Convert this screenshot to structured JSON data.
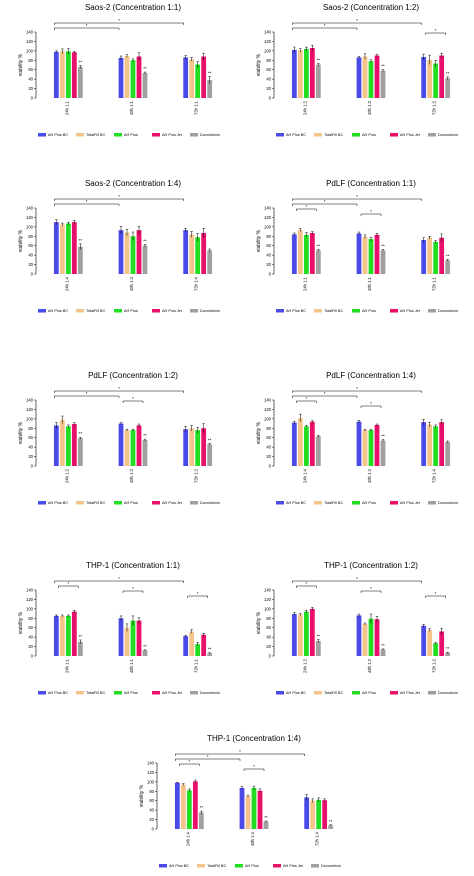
{
  "colors": {
    "AH Plus BC": "#4a4ae8",
    "TotalFill BC": "#f5c48a",
    "AH Plus": "#22dd22",
    "AH Plus Jet": "#e8106a",
    "Doxorubicin": "#a0a0a0"
  },
  "chart_data": [
    {
      "type": "bar",
      "title": "Saos-2 (Concentration 1:1)",
      "ylabel": "viability %",
      "ylim": [
        0,
        140
      ],
      "yticks": [
        0,
        20,
        40,
        60,
        80,
        100,
        120,
        140
      ],
      "categories": [
        "24h 1:1",
        "48h 1:1",
        "72h 1:1"
      ],
      "series": [
        {
          "name": "AH Plus BC",
          "values": [
            98,
            85,
            86
          ],
          "errors": [
            2,
            4,
            4
          ]
        },
        {
          "name": "TotalFill BC",
          "values": [
            99,
            89,
            82
          ],
          "errors": [
            5,
            3,
            4
          ]
        },
        {
          "name": "AH Plus",
          "values": [
            99,
            80,
            71
          ],
          "errors": [
            6,
            3,
            6
          ]
        },
        {
          "name": "AH Plus Jet",
          "values": [
            97,
            88,
            88
          ],
          "errors": [
            2,
            8,
            7
          ]
        },
        {
          "name": "Doxorubicin",
          "values": [
            66,
            53,
            38
          ],
          "errors": [
            3,
            2,
            8
          ]
        }
      ],
      "dox_marks": [
        "**",
        "**",
        "**"
      ],
      "brackets": [
        {
          "from": "24h 1:1",
          "to": "72h 1:1",
          "label": "*"
        },
        {
          "from": "24h 1:1",
          "to": "48h 1:1",
          "label": "*"
        }
      ]
    },
    {
      "type": "bar",
      "title": "Saos-2 (Concentration 1:2)",
      "ylabel": "viability %",
      "ylim": [
        0,
        140
      ],
      "yticks": [
        0,
        20,
        40,
        60,
        80,
        100,
        120,
        140
      ],
      "categories": [
        "24h 1:2",
        "48h 1:2",
        "72h 1:2"
      ],
      "series": [
        {
          "name": "AH Plus BC",
          "values": [
            102,
            86,
            87
          ],
          "errors": [
            6,
            2,
            6
          ]
        },
        {
          "name": "TotalFill BC",
          "values": [
            101,
            88,
            81
          ],
          "errors": [
            4,
            6,
            10
          ]
        },
        {
          "name": "AH Plus",
          "values": [
            104,
            78,
            73
          ],
          "errors": [
            4,
            3,
            7
          ]
        },
        {
          "name": "AH Plus Jet",
          "values": [
            106,
            90,
            90
          ],
          "errors": [
            6,
            3,
            5
          ]
        },
        {
          "name": "Doxorubicin",
          "values": [
            71,
            58,
            42
          ],
          "errors": [
            2,
            2,
            3
          ]
        }
      ],
      "dox_marks": [
        "**",
        "**",
        "**"
      ],
      "brackets": [
        {
          "from": "24h 1:2",
          "to": "72h 1:2",
          "label": "*"
        },
        {
          "from": "24h 1:2",
          "to": "48h 1:2",
          "label": "*"
        },
        {
          "from": "72h 1:2",
          "to": "72h 1:2",
          "label": "*"
        }
      ]
    },
    {
      "type": "bar",
      "title": "Saos-2 (Concentration 1:4)",
      "ylabel": "viability %",
      "ylim": [
        0,
        140
      ],
      "yticks": [
        0,
        20,
        40,
        60,
        80,
        100,
        120,
        140
      ],
      "categories": [
        "24h 1:4",
        "48h 1:4",
        "72h 1:4"
      ],
      "series": [
        {
          "name": "AH Plus BC",
          "values": [
            110,
            93,
            93
          ],
          "errors": [
            5,
            8,
            4
          ]
        },
        {
          "name": "TotalFill BC",
          "values": [
            105,
            88,
            84
          ],
          "errors": [
            3,
            7,
            6
          ]
        },
        {
          "name": "AH Plus",
          "values": [
            107,
            80,
            78
          ],
          "errors": [
            3,
            9,
            8
          ]
        },
        {
          "name": "AH Plus Jet",
          "values": [
            110,
            93,
            87
          ],
          "errors": [
            4,
            8,
            10
          ]
        },
        {
          "name": "Doxorubicin",
          "values": [
            58,
            60,
            50
          ],
          "errors": [
            6,
            3,
            3
          ]
        }
      ],
      "dox_marks": [
        "**",
        "**",
        ""
      ],
      "brackets": [
        {
          "from": "24h 1:4",
          "to": "72h 1:4",
          "label": "*"
        },
        {
          "from": "24h 1:4",
          "to": "48h 1:4",
          "label": "*"
        }
      ]
    },
    {
      "type": "bar",
      "title": "PdLF (Concentration 1:1)",
      "ylabel": "viability %",
      "ylim": [
        0,
        140
      ],
      "yticks": [
        0,
        20,
        40,
        60,
        80,
        100,
        120,
        140
      ],
      "categories": [
        "24h 1:1",
        "48h 1:1",
        "72h 1:1"
      ],
      "series": [
        {
          "name": "AH Plus BC",
          "values": [
            84,
            86,
            72
          ],
          "errors": [
            3,
            3,
            5
          ]
        },
        {
          "name": "TotalFill BC",
          "values": [
            93,
            79,
            77
          ],
          "errors": [
            3,
            4,
            3
          ]
        },
        {
          "name": "AH Plus",
          "values": [
            83,
            74,
            68
          ],
          "errors": [
            5,
            4,
            3
          ]
        },
        {
          "name": "AH Plus Jet",
          "values": [
            87,
            83,
            77
          ],
          "errors": [
            3,
            3,
            8
          ]
        },
        {
          "name": "Doxorubicin",
          "values": [
            50,
            50,
            29
          ],
          "errors": [
            2,
            2,
            2
          ]
        }
      ],
      "dox_marks": [
        "**",
        "**",
        "**"
      ],
      "brackets": [
        {
          "from": "24h 1:1",
          "to": "72h 1:1",
          "label": "*"
        },
        {
          "from": "24h 1:1",
          "to": "48h 1:1",
          "label": "*"
        },
        {
          "from": "24h 1:1",
          "to": "24h 1:1",
          "label": "*"
        },
        {
          "from": "48h 1:1",
          "to": "48h 1:1",
          "label": "*"
        }
      ]
    },
    {
      "type": "bar",
      "title": "PdLF (Concentration 1:2)",
      "ylabel": "viability %",
      "ylim": [
        0,
        140
      ],
      "yticks": [
        0,
        20,
        40,
        60,
        80,
        100,
        120,
        140
      ],
      "categories": [
        "24h 1:2",
        "48h 1:2",
        "72h 1:2"
      ],
      "series": [
        {
          "name": "AH Plus BC",
          "values": [
            86,
            90,
            78
          ],
          "errors": [
            6,
            2,
            6
          ]
        },
        {
          "name": "TotalFill BC",
          "values": [
            98,
            76,
            80
          ],
          "errors": [
            8,
            2,
            6
          ]
        },
        {
          "name": "AH Plus",
          "values": [
            84,
            76,
            76
          ],
          "errors": [
            3,
            2,
            6
          ]
        },
        {
          "name": "AH Plus Jet",
          "values": [
            89,
            86,
            80
          ],
          "errors": [
            3,
            3,
            10
          ]
        },
        {
          "name": "Doxorubicin",
          "values": [
            59,
            55,
            46
          ],
          "errors": [
            2,
            2,
            2
          ]
        }
      ],
      "dox_marks": [
        "**",
        "**",
        "**"
      ],
      "brackets": [
        {
          "from": "24h 1:2",
          "to": "72h 1:2",
          "label": "*"
        },
        {
          "from": "24h 1:2",
          "to": "48h 1:2",
          "label": "*"
        },
        {
          "from": "48h 1:2",
          "to": "48h 1:2",
          "label": "*"
        }
      ]
    },
    {
      "type": "bar",
      "title": "PdLF (Concentration 1:4)",
      "ylabel": "viability %",
      "ylim": [
        0,
        140
      ],
      "yticks": [
        0,
        20,
        40,
        60,
        80,
        100,
        120,
        140
      ],
      "categories": [
        "24h 1:4",
        "48h 1:4",
        "72h 1:4"
      ],
      "series": [
        {
          "name": "AH Plus BC",
          "values": [
            92,
            94,
            93
          ],
          "errors": [
            3,
            3,
            6
          ]
        },
        {
          "name": "TotalFill BC",
          "values": [
            102,
            76,
            88
          ],
          "errors": [
            8,
            2,
            5
          ]
        },
        {
          "name": "AH Plus",
          "values": [
            84,
            76,
            84
          ],
          "errors": [
            2,
            2,
            3
          ]
        },
        {
          "name": "AH Plus Jet",
          "values": [
            94,
            87,
            93
          ],
          "errors": [
            2,
            2,
            5
          ]
        },
        {
          "name": "Doxorubicin",
          "values": [
            63,
            54,
            51
          ],
          "errors": [
            2,
            2,
            2
          ]
        }
      ],
      "dox_marks": [
        "",
        "**",
        ""
      ],
      "brackets": [
        {
          "from": "24h 1:4",
          "to": "72h 1:4",
          "label": "*"
        },
        {
          "from": "24h 1:4",
          "to": "48h 1:4",
          "label": "*"
        },
        {
          "from": "24h 1:4",
          "to": "24h 1:4",
          "label": "*"
        },
        {
          "from": "48h 1:4",
          "to": "48h 1:4",
          "label": "*"
        }
      ]
    },
    {
      "type": "bar",
      "title": "THP-1 (Concentration 1:1)",
      "ylabel": "viability %",
      "ylim": [
        0,
        140
      ],
      "yticks": [
        0,
        20,
        40,
        60,
        80,
        100,
        120,
        140
      ],
      "categories": [
        "24h 1:1",
        "48h 1:1",
        "72h 1:1"
      ],
      "series": [
        {
          "name": "AH Plus BC",
          "values": [
            85,
            80,
            42
          ],
          "errors": [
            2,
            5,
            2
          ]
        },
        {
          "name": "TotalFill BC",
          "values": [
            85,
            60,
            52
          ],
          "errors": [
            2,
            8,
            4
          ]
        },
        {
          "name": "AH Plus",
          "values": [
            85,
            75,
            25
          ],
          "errors": [
            2,
            10,
            4
          ]
        },
        {
          "name": "AH Plus Jet",
          "values": [
            94,
            75,
            45
          ],
          "errors": [
            3,
            6,
            3
          ]
        },
        {
          "name": "Doxorubicin",
          "values": [
            30,
            12,
            6
          ],
          "errors": [
            4,
            1,
            1
          ]
        }
      ],
      "dox_marks": [
        "**",
        "**",
        "**"
      ],
      "brackets": [
        {
          "from": "24h 1:1",
          "to": "72h 1:1",
          "label": "*"
        },
        {
          "from": "24h 1:1",
          "to": "24h 1:1",
          "label": "*"
        },
        {
          "from": "48h 1:1",
          "to": "48h 1:1",
          "label": "*"
        },
        {
          "from": "72h 1:1",
          "to": "72h 1:1",
          "label": "*"
        }
      ]
    },
    {
      "type": "bar",
      "title": "THP-1 (Concentration 1:2)",
      "ylabel": "viability %",
      "ylim": [
        0,
        140
      ],
      "yticks": [
        0,
        20,
        40,
        60,
        80,
        100,
        120,
        140
      ],
      "categories": [
        "24h 1:2",
        "48h 1:2",
        "72h 1:2"
      ],
      "series": [
        {
          "name": "AH Plus BC",
          "values": [
            89,
            86,
            64
          ],
          "errors": [
            3,
            3,
            3
          ]
        },
        {
          "name": "TotalFill BC",
          "values": [
            88,
            68,
            55
          ],
          "errors": [
            2,
            2,
            3
          ]
        },
        {
          "name": "AH Plus",
          "values": [
            94,
            79,
            27
          ],
          "errors": [
            3,
            10,
            2
          ]
        },
        {
          "name": "AH Plus Jet",
          "values": [
            100,
            78,
            52
          ],
          "errors": [
            3,
            6,
            7
          ]
        },
        {
          "name": "Doxorubicin",
          "values": [
            32,
            14,
            7
          ],
          "errors": [
            3,
            1,
            1
          ]
        }
      ],
      "dox_marks": [
        "**",
        "**",
        "**"
      ],
      "brackets": [
        {
          "from": "24h 1:2",
          "to": "72h 1:2",
          "label": "*"
        },
        {
          "from": "24h 1:2",
          "to": "24h 1:2",
          "label": "*"
        },
        {
          "from": "48h 1:2",
          "to": "48h 1:2",
          "label": "*"
        },
        {
          "from": "72h 1:2",
          "to": "72h 1:2",
          "label": "*"
        }
      ]
    },
    {
      "type": "bar",
      "title": "THP-1 (Concentration 1:4)",
      "ylabel": "viability %",
      "ylim": [
        0,
        140
      ],
      "yticks": [
        0,
        20,
        40,
        60,
        80,
        100,
        120,
        140
      ],
      "categories": [
        "24h 1:4",
        "48h 1:4",
        "72h 1:4"
      ],
      "series": [
        {
          "name": "AH Plus BC",
          "values": [
            98,
            87,
            67
          ],
          "errors": [
            1,
            3,
            6
          ]
        },
        {
          "name": "TotalFill BC",
          "values": [
            94,
            70,
            60
          ],
          "errors": [
            2,
            2,
            4
          ]
        },
        {
          "name": "AH Plus",
          "values": [
            82,
            87,
            62
          ],
          "errors": [
            3,
            4,
            4
          ]
        },
        {
          "name": "AH Plus Jet",
          "values": [
            101,
            81,
            61
          ],
          "errors": [
            3,
            4,
            3
          ]
        },
        {
          "name": "Doxorubicin",
          "values": [
            35,
            16,
            8
          ],
          "errors": [
            3,
            1,
            1
          ]
        }
      ],
      "dox_marks": [
        "**",
        "**",
        "**"
      ],
      "brackets": [
        {
          "from": "24h 1:4",
          "to": "72h 1:4",
          "label": "*"
        },
        {
          "from": "24h 1:4",
          "to": "48h 1:4",
          "label": "*"
        },
        {
          "from": "24h 1:4",
          "to": "24h 1:4",
          "label": "*"
        },
        {
          "from": "48h 1:4",
          "to": "48h 1:4",
          "label": "*"
        }
      ]
    }
  ]
}
